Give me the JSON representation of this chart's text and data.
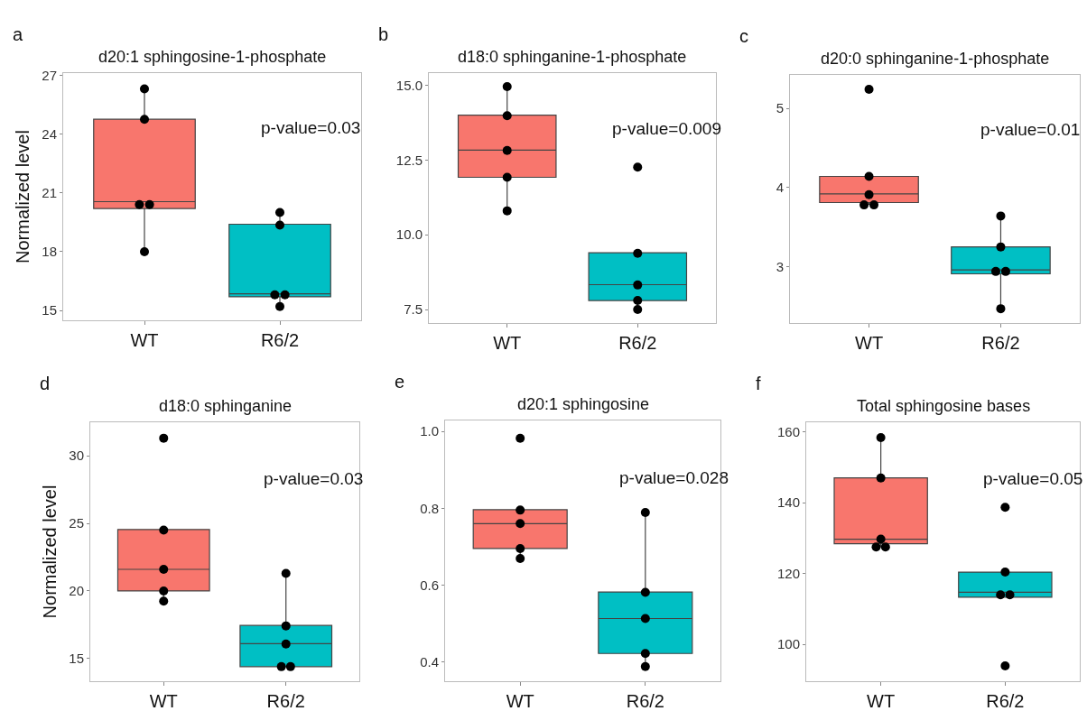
{
  "chart_data": [
    {
      "type": "box",
      "title": "d20:1 sphingosine-1-phosphate",
      "ylabel": "Normalized level",
      "categories": [
        "WT",
        "R6/2"
      ],
      "colors": [
        "#f8766d",
        "#00bfc4"
      ],
      "ylim": [
        14.5,
        27.1
      ],
      "yticks": [
        15,
        18,
        21,
        24,
        27
      ],
      "annotations": [
        "a",
        "p-value=0.03"
      ],
      "boxes": [
        {
          "low": 18.0,
          "q1": 20.2,
          "median": 20.55,
          "q3": 24.75,
          "high": 26.3
        },
        {
          "low": 15.2,
          "q1": 15.7,
          "median": 15.85,
          "q3": 19.4,
          "high": 20.0
        }
      ],
      "series": [
        {
          "type": "scatter",
          "color": "#000000",
          "marker": "circle",
          "x": [
            "WT",
            "WT",
            "WT",
            "WT",
            "WT",
            "R6/2",
            "R6/2",
            "R6/2",
            "R6/2",
            "R6/2"
          ],
          "values": [
            26.3,
            24.75,
            20.4,
            20.4,
            18.0,
            20.0,
            19.35,
            15.8,
            15.8,
            15.2
          ]
        }
      ]
    },
    {
      "type": "box",
      "title": "d18:0 sphinganine-1-phosphate",
      "categories": [
        "WT",
        "R6/2"
      ],
      "colors": [
        "#f8766d",
        "#00bfc4"
      ],
      "ylim": [
        7.05,
        15.4
      ],
      "yticks": [
        7.5,
        {
          "value": 10,
          "label": "10.0"
        },
        12.5,
        {
          "value": 15,
          "label": "15.0"
        }
      ],
      "annotations": [
        "b",
        "p-value=0.009"
      ],
      "boxes": [
        {
          "low": 10.8,
          "q1": 11.92,
          "median": 12.83,
          "q3": 14.0,
          "high": 14.95
        },
        {
          "low": 7.5,
          "q1": 7.8,
          "median": 8.33,
          "q3": 9.4,
          "high": 9.4
        }
      ],
      "series": [
        {
          "type": "scatter",
          "color": "#000000",
          "marker": "circle",
          "x": [
            "WT",
            "WT",
            "WT",
            "WT",
            "WT",
            "R6/2",
            "R6/2",
            "R6/2",
            "R6/2",
            "R6/2"
          ],
          "values": [
            14.95,
            13.98,
            12.82,
            11.92,
            10.8,
            12.26,
            9.38,
            8.32,
            7.8,
            7.5
          ]
        }
      ]
    },
    {
      "type": "box",
      "title": "d20:0 sphinganine-1-phosphate",
      "categories": [
        "WT",
        "R6/2"
      ],
      "colors": [
        "#f8766d",
        "#00bfc4"
      ],
      "ylim": [
        2.29,
        5.42
      ],
      "yticks": [
        3,
        4,
        5
      ],
      "annotations": [
        "c",
        "p-value=0.01"
      ],
      "boxes": [
        {
          "low": 3.78,
          "q1": 3.81,
          "median": 3.92,
          "q3": 4.14,
          "high": 4.14
        },
        {
          "low": 2.47,
          "q1": 2.91,
          "median": 2.96,
          "q3": 3.25,
          "high": 3.64
        }
      ],
      "series": [
        {
          "type": "scatter",
          "color": "#000000",
          "marker": "circle",
          "x": [
            "WT",
            "WT",
            "WT",
            "WT",
            "WT",
            "R6/2",
            "R6/2",
            "R6/2",
            "R6/2",
            "R6/2"
          ],
          "values": [
            5.24,
            4.14,
            3.91,
            3.78,
            3.78,
            3.64,
            3.25,
            2.94,
            2.94,
            2.47
          ]
        }
      ]
    },
    {
      "type": "box",
      "title": "d18:0 sphinganine",
      "ylabel": "Normalized level",
      "categories": [
        "WT",
        "R6/2"
      ],
      "colors": [
        "#f8766d",
        "#00bfc4"
      ],
      "ylim": [
        13.3,
        32.5
      ],
      "yticks": [
        15,
        20,
        25,
        30
      ],
      "annotations": [
        "d",
        "p-value=0.03"
      ],
      "boxes": [
        {
          "low": 19.25,
          "q1": 20.0,
          "median": 21.6,
          "q3": 24.55,
          "high": 24.55
        },
        {
          "low": 14.4,
          "q1": 14.4,
          "median": 16.1,
          "q3": 17.45,
          "high": 21.3
        }
      ],
      "series": [
        {
          "type": "scatter",
          "color": "#000000",
          "marker": "circle",
          "x": [
            "WT",
            "WT",
            "WT",
            "WT",
            "WT",
            "R6/2",
            "R6/2",
            "R6/2",
            "R6/2",
            "R6/2"
          ],
          "values": [
            31.3,
            24.5,
            21.6,
            20.0,
            19.25,
            21.3,
            17.42,
            16.08,
            14.4,
            14.4
          ]
        }
      ]
    },
    {
      "type": "box",
      "title": "d20:1 sphingosine",
      "categories": [
        "WT",
        "R6/2"
      ],
      "colors": [
        "#f8766d",
        "#00bfc4"
      ],
      "ylim": [
        0.349,
        1.029
      ],
      "yticks": [
        0.4,
        0.6,
        0.8,
        {
          "value": 1,
          "label": "1.0"
        }
      ],
      "annotations": [
        "e",
        "p-value=0.028"
      ],
      "boxes": [
        {
          "low": 0.669,
          "q1": 0.695,
          "median": 0.76,
          "q3": 0.796,
          "high": 0.796
        },
        {
          "low": 0.388,
          "q1": 0.422,
          "median": 0.513,
          "q3": 0.582,
          "high": 0.789
        }
      ],
      "series": [
        {
          "type": "scatter",
          "color": "#000000",
          "marker": "circle",
          "x": [
            "WT",
            "WT",
            "WT",
            "WT",
            "WT",
            "R6/2",
            "R6/2",
            "R6/2",
            "R6/2",
            "R6/2"
          ],
          "values": [
            0.982,
            0.795,
            0.76,
            0.695,
            0.669,
            0.789,
            0.581,
            0.513,
            0.422,
            0.388
          ]
        }
      ]
    },
    {
      "type": "box",
      "title": "Total sphingosine bases",
      "categories": [
        "WT",
        "R6/2"
      ],
      "colors": [
        "#f8766d",
        "#00bfc4"
      ],
      "ylim": [
        89.5,
        162.8
      ],
      "yticks": [
        100,
        120,
        140,
        160
      ],
      "annotations": [
        "f",
        "p-value=0.05"
      ],
      "boxes": [
        {
          "low": 127.5,
          "q1": 128.4,
          "median": 129.7,
          "q3": 147.0,
          "high": 158.4
        },
        {
          "low": 113.3,
          "q1": 113.3,
          "median": 114.7,
          "q3": 120.4,
          "high": 120.4
        }
      ],
      "series": [
        {
          "type": "scatter",
          "color": "#000000",
          "marker": "circle",
          "x": [
            "WT",
            "WT",
            "WT",
            "WT",
            "WT",
            "R6/2",
            "R6/2",
            "R6/2",
            "R6/2",
            "R6/2"
          ],
          "values": [
            158.4,
            147.0,
            129.7,
            127.5,
            127.5,
            138.7,
            120.4,
            114.0,
            114.0,
            93.9
          ]
        }
      ]
    }
  ]
}
